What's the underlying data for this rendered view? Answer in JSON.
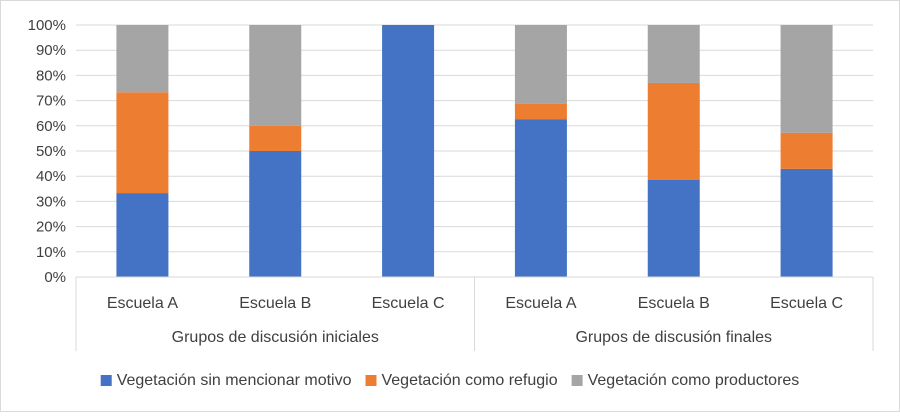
{
  "chart_data": {
    "type": "bar",
    "stacked": "percent",
    "categories": [
      "Escuela A",
      "Escuela B",
      "Escuela C",
      "Escuela A",
      "Escuela B",
      "Escuela C"
    ],
    "groups": [
      {
        "label": "Grupos de discusión iniciales",
        "categories": [
          "Escuela A",
          "Escuela B",
          "Escuela C"
        ]
      },
      {
        "label": "Grupos de discusión finales",
        "categories": [
          "Escuela A",
          "Escuela B",
          "Escuela C"
        ]
      }
    ],
    "series": [
      {
        "name": "Vegetación sin mencionar motivo",
        "color": "#4472c4",
        "values": [
          33.3,
          50,
          100,
          62.5,
          38.5,
          42.9
        ]
      },
      {
        "name": "Vegetación como refugio",
        "color": "#ed7d31",
        "values": [
          40,
          10,
          0,
          6.3,
          38.5,
          14.3
        ]
      },
      {
        "name": "Vegetación como productores",
        "color": "#a5a5a5",
        "values": [
          26.7,
          40,
          0,
          31.2,
          23,
          42.8
        ]
      }
    ],
    "ylim": [
      0,
      100
    ],
    "yticks": [
      "0%",
      "10%",
      "20%",
      "30%",
      "40%",
      "50%",
      "60%",
      "70%",
      "80%",
      "90%",
      "100%"
    ],
    "grid": true,
    "legend_position": "bottom"
  }
}
